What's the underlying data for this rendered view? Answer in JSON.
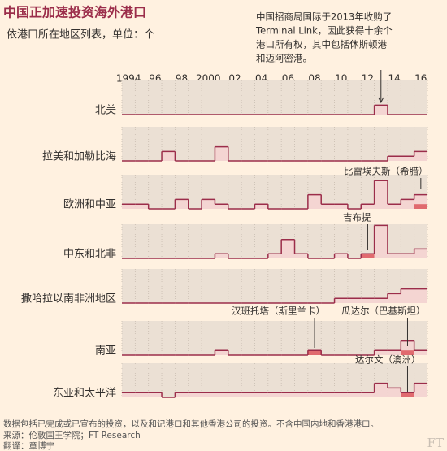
{
  "chart_data": {
    "type": "step-area",
    "title": "中国正加速投资海外港口",
    "subtitle": "依港口所在地区列表，单位：个",
    "categories": [
      "1994",
      null,
      "96",
      null,
      "98",
      null,
      "2000",
      null,
      "02",
      null,
      "04",
      null,
      "06",
      null,
      "08",
      null,
      "10",
      null,
      "12",
      null,
      "14",
      null,
      "16"
    ],
    "color": "#9b2d4a",
    "fill_color": "#f4d5d2",
    "highlight_color": "#e06a6f",
    "series": [
      {
        "name": "北美",
        "values": [
          0,
          0,
          0,
          0,
          0,
          0,
          0,
          0,
          0,
          0,
          0,
          0,
          0,
          0,
          0,
          0,
          0,
          0,
          0,
          2,
          0,
          0,
          0
        ],
        "highlight": [
          null,
          null,
          null,
          null,
          null,
          null,
          null,
          null,
          null,
          null,
          null,
          null,
          null,
          null,
          null,
          null,
          null,
          null,
          null,
          null,
          null,
          null,
          null
        ]
      },
      {
        "name": "拉美和加勒比海",
        "values": [
          0,
          0,
          0,
          2,
          0,
          0,
          0,
          3,
          0,
          0,
          0,
          0,
          0,
          0,
          0,
          0,
          0,
          0,
          0,
          0,
          1,
          1,
          2
        ],
        "highlight": [
          null,
          null,
          null,
          null,
          null,
          null,
          null,
          null,
          null,
          null,
          null,
          null,
          null,
          null,
          null,
          null,
          null,
          null,
          null,
          null,
          null,
          null,
          null
        ]
      },
      {
        "name": "欧洲和中亚",
        "values": [
          1,
          1,
          0,
          0,
          2,
          0,
          2,
          1,
          0,
          0,
          1,
          0,
          0,
          0,
          3,
          1,
          1,
          0,
          1,
          6,
          1,
          2,
          3
        ],
        "highlight": [
          null,
          null,
          null,
          null,
          null,
          null,
          null,
          null,
          null,
          null,
          null,
          null,
          null,
          null,
          null,
          null,
          null,
          null,
          null,
          null,
          null,
          null,
          1
        ]
      },
      {
        "name": "中东和北非",
        "values": [
          0,
          0,
          0,
          0,
          0,
          0,
          0,
          1,
          0,
          0,
          0,
          1,
          4,
          1,
          0,
          0,
          1,
          0,
          1,
          7,
          1,
          1,
          2
        ],
        "highlight": [
          null,
          null,
          null,
          null,
          null,
          null,
          null,
          null,
          null,
          null,
          null,
          null,
          null,
          null,
          null,
          null,
          null,
          null,
          1,
          null,
          null,
          null,
          null
        ]
      },
      {
        "name": "撒哈拉以南非洲地区",
        "values": [
          0,
          0,
          0,
          0,
          0,
          0,
          0,
          0,
          0,
          0,
          0,
          0,
          0,
          0,
          0,
          0,
          1,
          1,
          1,
          1,
          2,
          3,
          3
        ],
        "highlight": [
          null,
          null,
          null,
          null,
          null,
          null,
          null,
          null,
          null,
          null,
          null,
          null,
          null,
          null,
          null,
          null,
          null,
          null,
          null,
          null,
          null,
          null,
          null
        ]
      },
      {
        "name": "南亚",
        "values": [
          0,
          0,
          0,
          0,
          0,
          0,
          0,
          1,
          0,
          0,
          0,
          0,
          0,
          0,
          1,
          0,
          0,
          0,
          0,
          1,
          1,
          3,
          1
        ],
        "highlight": [
          null,
          null,
          null,
          null,
          null,
          null,
          null,
          null,
          null,
          null,
          null,
          null,
          null,
          null,
          1,
          null,
          null,
          null,
          null,
          null,
          null,
          1,
          null
        ]
      },
      {
        "name": "东亚和太平洋",
        "values": [
          1,
          1,
          1,
          0,
          1,
          1,
          1,
          1,
          1,
          1,
          1,
          1,
          1,
          1,
          1,
          1,
          1,
          1,
          1,
          3,
          2,
          1,
          3
        ],
        "highlight": [
          null,
          null,
          null,
          null,
          null,
          null,
          null,
          null,
          null,
          null,
          null,
          null,
          null,
          null,
          null,
          null,
          null,
          null,
          null,
          null,
          null,
          1,
          null
        ]
      }
    ],
    "annotations": [
      {
        "lines": [
          "中国招商局国际于2013年收购了",
          "Terminal Link，因此获得十余个",
          "港口所有权，其中包括休斯顿港",
          "和迈阿密港。"
        ]
      },
      {
        "text": "比雷埃夫斯（希腊）"
      },
      {
        "text": "吉布提"
      },
      {
        "text": "汉班托塔（斯里兰卡）"
      },
      {
        "text": "瓜达尔（巴基斯坦）"
      },
      {
        "text": "达尔文（澳洲）"
      }
    ],
    "notes": [
      "数据包括已完成或已宣布的投资，以及和记港口和其他香港公司的投资。不含中国内地和香港港口。",
      "来源：伦敦国王学院；FT Research",
      "翻译：章博宁"
    ],
    "logo": "FT"
  }
}
